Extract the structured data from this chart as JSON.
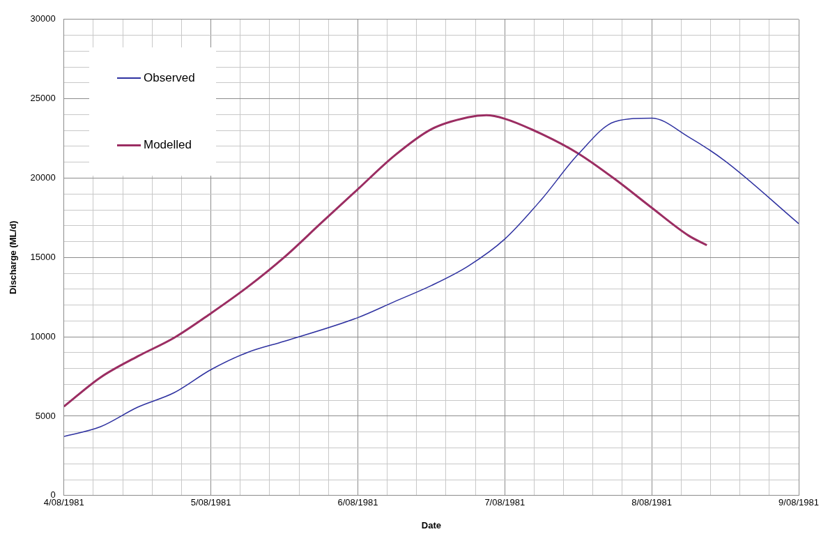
{
  "chart_data": {
    "type": "line",
    "xlabel": "Date",
    "ylabel": "Discharge (ML/d)",
    "xlim": [
      "1981-08-04",
      "1981-08-09"
    ],
    "xticks": [
      {
        "value": "1981-08-04",
        "label": "4/08/1981"
      },
      {
        "value": "1981-08-04T04:48",
        "label": null
      },
      {
        "value": "1981-08-04T09:36",
        "label": null
      },
      {
        "value": "1981-08-04T14:24",
        "label": null
      },
      {
        "value": "1981-08-04T19:12",
        "label": null
      },
      {
        "value": "1981-08-05",
        "label": "5/08/1981"
      },
      {
        "value": "1981-08-05T04:48",
        "label": null
      },
      {
        "value": "1981-08-05T09:36",
        "label": null
      },
      {
        "value": "1981-08-05T14:24",
        "label": null
      },
      {
        "value": "1981-08-05T19:12",
        "label": null
      },
      {
        "value": "1981-08-06",
        "label": "6/08/1981"
      },
      {
        "value": "1981-08-06T04:48",
        "label": null
      },
      {
        "value": "1981-08-06T09:36",
        "label": null
      },
      {
        "value": "1981-08-06T14:24",
        "label": null
      },
      {
        "value": "1981-08-06T19:12",
        "label": null
      },
      {
        "value": "1981-08-07",
        "label": "7/08/1981"
      },
      {
        "value": "1981-08-07T04:48",
        "label": null
      },
      {
        "value": "1981-08-07T09:36",
        "label": null
      },
      {
        "value": "1981-08-07T14:24",
        "label": null
      },
      {
        "value": "1981-08-07T19:12",
        "label": null
      },
      {
        "value": "1981-08-08",
        "label": "8/08/1981"
      },
      {
        "value": "1981-08-08T04:48",
        "label": null
      },
      {
        "value": "1981-08-08T09:36",
        "label": null
      },
      {
        "value": "1981-08-08T14:24",
        "label": null
      },
      {
        "value": "1981-08-08T19:12",
        "label": null
      },
      {
        "value": "1981-08-09",
        "label": "9/08/1981"
      }
    ],
    "ylim": [
      0,
      30000
    ],
    "yticks": [
      0,
      {
        "value": 1000,
        "label": null
      },
      {
        "value": 2000,
        "label": null
      },
      {
        "value": 3000,
        "label": null
      },
      {
        "value": 4000,
        "label": null
      },
      5000,
      {
        "value": 6000,
        "label": null
      },
      {
        "value": 7000,
        "label": null
      },
      {
        "value": 8000,
        "label": null
      },
      {
        "value": 9000,
        "label": null
      },
      10000,
      {
        "value": 11000,
        "label": null
      },
      {
        "value": 12000,
        "label": null
      },
      {
        "value": 13000,
        "label": null
      },
      {
        "value": 14000,
        "label": null
      },
      15000,
      {
        "value": 16000,
        "label": null
      },
      {
        "value": 17000,
        "label": null
      },
      {
        "value": 18000,
        "label": null
      },
      {
        "value": 19000,
        "label": null
      },
      20000,
      {
        "value": 21000,
        "label": null
      },
      {
        "value": 22000,
        "label": null
      },
      {
        "value": 23000,
        "label": null
      },
      {
        "value": 24000,
        "label": null
      },
      25000,
      {
        "value": 26000,
        "label": null
      },
      {
        "value": 27000,
        "label": null
      },
      {
        "value": 28000,
        "label": null
      },
      {
        "value": 29000,
        "label": null
      },
      30000
    ],
    "grid": true,
    "legend": "top left",
    "marker": "none",
    "series": [
      {
        "name": "Observed",
        "color": "#2e31a0",
        "x": [
          "1981-08-04T00:00",
          "1981-08-04T06:00",
          "1981-08-04T12:00",
          "1981-08-04T18:00",
          "1981-08-05T00:00",
          "1981-08-05T06:00",
          "1981-08-05T12:00",
          "1981-08-06T00:00",
          "1981-08-06T06:00",
          "1981-08-06T12:00",
          "1981-08-06T18:00",
          "1981-08-07T00:00",
          "1981-08-07T06:00",
          "1981-08-07T12:00",
          "1981-08-07T18:00",
          "1981-08-08T00:00",
          "1981-08-08T06:00",
          "1981-08-08T12:00",
          "1981-08-09T00:00"
        ],
        "values": [
          3720,
          4340,
          5560,
          6480,
          7930,
          9020,
          9720,
          11210,
          12220,
          13230,
          14450,
          16160,
          18660,
          21510,
          23560,
          23780,
          22600,
          21070,
          17130
        ]
      },
      {
        "name": "Modelled",
        "color": "#9b2d62",
        "x": [
          "1981-08-04T00:00",
          "1981-08-04T06:00",
          "1981-08-04T12:00",
          "1981-08-04T18:00",
          "1981-08-05T00:00",
          "1981-08-05T06:00",
          "1981-08-05T12:00",
          "1981-08-05T18:00",
          "1981-08-06T00:00",
          "1981-08-06T06:00",
          "1981-08-06T12:00",
          "1981-08-06T18:00",
          "1981-08-06T21:00",
          "1981-08-07T00:00",
          "1981-08-07T06:00",
          "1981-08-07T12:00",
          "1981-08-07T18:00",
          "1981-08-08T00:00",
          "1981-08-08T06:00",
          "1981-08-08T09:00"
        ],
        "values": [
          5610,
          7450,
          8760,
          9940,
          11480,
          13140,
          15020,
          17170,
          19300,
          21420,
          23080,
          23830,
          23960,
          23740,
          22780,
          21550,
          19930,
          18130,
          16380,
          15770
        ]
      }
    ]
  }
}
